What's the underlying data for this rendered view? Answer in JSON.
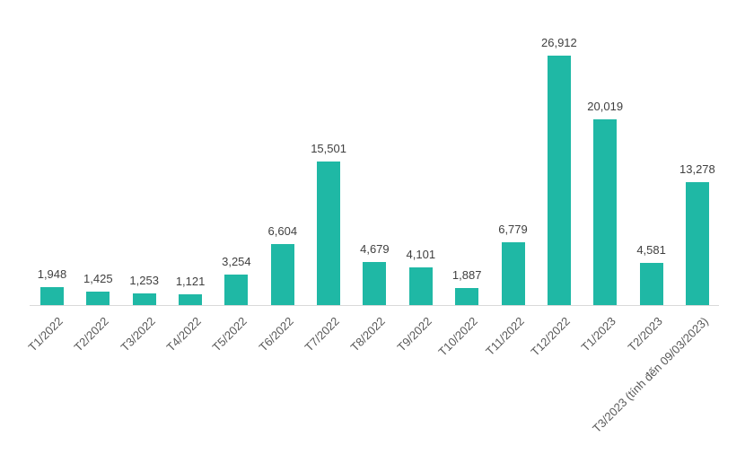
{
  "chart_data": {
    "type": "bar",
    "title": "",
    "xlabel": "",
    "ylabel": "",
    "categories": [
      "T1/2022",
      "T2/2022",
      "T3/2022",
      "T4/2022",
      "T5/2022",
      "T6/2022",
      "T7/2022",
      "T8/2022",
      "T9/2022",
      "T10/2022",
      "T11/2022",
      "T12/2022",
      "T1/2023",
      "T2/2023",
      "T3/2023 (tính đến 09/03/2023)"
    ],
    "values": [
      1948,
      1425,
      1253,
      1121,
      3254,
      6604,
      15501,
      4679,
      4101,
      1887,
      6779,
      26912,
      20019,
      4581,
      13278
    ],
    "data_labels": [
      "1,948",
      "1,425",
      "1,253",
      "1,121",
      "3,254",
      "6,604",
      "15,501",
      "4,679",
      "4,101",
      "1,887",
      "6,779",
      "26,912",
      "20,019",
      "4,581",
      "13,278"
    ],
    "ylim": [
      0,
      28000
    ],
    "grid": false,
    "legend": "none",
    "x_tick_rotation_deg": 45,
    "colors": {
      "bar": "#1fb8a5",
      "data_label": "#404040",
      "tick_label": "#595959",
      "axis_line": "#d9d9d9",
      "background": "#ffffff"
    }
  }
}
